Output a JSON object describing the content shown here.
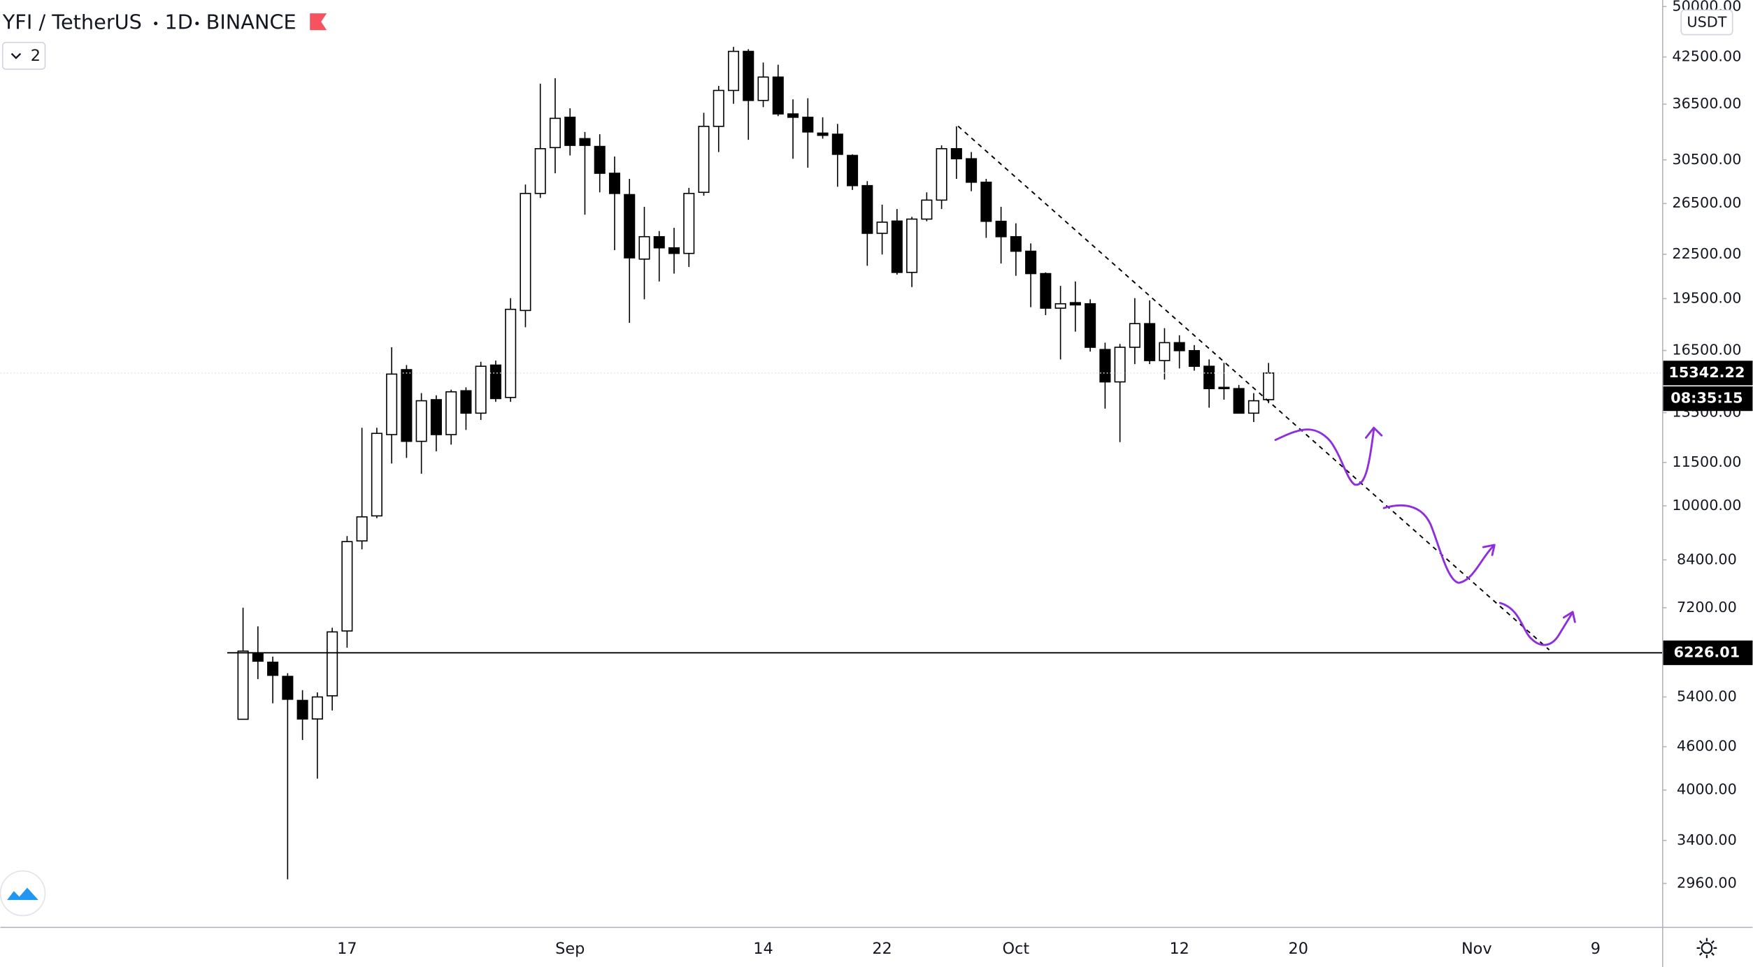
{
  "header": {
    "symbol": "YFI / TetherUS",
    "interval": "1D",
    "exchange": "BINANCE",
    "indicator_count": 2
  },
  "chart_data": {
    "type": "candlestick",
    "currency": "USDT",
    "log_scale": true,
    "grid": false,
    "up_color": "#ffffff",
    "down_color": "#000000",
    "wick_color": "#000000",
    "countdown": "08:35:15",
    "hline": 6226.01,
    "categories": [
      null,
      null,
      null,
      null,
      null,
      null,
      null,
      null,
      null,
      null,
      null,
      null,
      null,
      null,
      null,
      null,
      null,
      null,
      null,
      null,
      null,
      null,
      "17",
      null,
      null,
      null,
      null,
      null,
      null,
      null,
      null,
      null,
      null,
      null,
      null,
      null,
      null,
      "Sep",
      null,
      null,
      null,
      null,
      null,
      null,
      null,
      null,
      null,
      null,
      null,
      null,
      "14",
      null,
      null,
      null,
      null,
      null,
      null,
      null,
      "22",
      null,
      null,
      null,
      null,
      null,
      null,
      null,
      null,
      "Oct",
      null,
      null,
      null,
      null,
      null,
      null,
      null,
      null,
      null,
      null,
      "12",
      null,
      null,
      null,
      null,
      null,
      null,
      null,
      "20",
      null,
      null,
      null,
      null,
      null,
      null,
      null,
      null,
      null,
      null,
      null,
      "Nov",
      null,
      null,
      null,
      null,
      null,
      null,
      null,
      "9",
      null,
      null,
      null,
      null
    ],
    "open": [
      null,
      null,
      null,
      null,
      null,
      null,
      null,
      null,
      null,
      null,
      null,
      null,
      null,
      null,
      null,
      5025,
      6220,
      6040,
      5770,
      5340,
      5030,
      5420,
      6680,
      8930,
      9680,
      12580,
      15510,
      12310,
      14080,
      12580,
      14490,
      13480,
      15740,
      14180,
      18770,
      27370,
      31730,
      34990,
      32660,
      31850,
      29210,
      27270,
      22150,
      23810,
      22970,
      22560,
      27470,
      33980,
      38150,
      43270,
      36940,
      39830,
      35370,
      34990,
      33250,
      33130,
      30940,
      28070,
      24070,
      25040,
      21220,
      25200,
      26790,
      31620,
      30610,
      28380,
      25020,
      23810,
      22720,
      21140,
      18910,
      19250,
      19180,
      16550,
      14910,
      16670,
      17990,
      15970,
      16920,
      16490,
      15680,
      14650,
      14590,
      13480,
      14080,
      null,
      null,
      null,
      null,
      null,
      null,
      null,
      null,
      null,
      null,
      null,
      null,
      null,
      null,
      null,
      null,
      null,
      null,
      null,
      null,
      null,
      null,
      null,
      null,
      null,
      null
    ],
    "high": [
      null,
      null,
      null,
      null,
      null,
      null,
      null,
      null,
      null,
      null,
      null,
      null,
      null,
      null,
      null,
      7200,
      6780,
      6150,
      5830,
      5520,
      5480,
      6750,
      9070,
      12860,
      12860,
      16670,
      15740,
      14380,
      14280,
      14540,
      14650,
      15910,
      15970,
      19530,
      28170,
      38990,
      39690,
      36020,
      33370,
      33130,
      30830,
      28690,
      26220,
      24240,
      24500,
      27870,
      35500,
      38710,
      43900,
      43580,
      41740,
      41450,
      37070,
      37200,
      34990,
      34250,
      31050,
      28480,
      26400,
      26030,
      25380,
      27470,
      31960,
      33980,
      31280,
      28690,
      26220,
      24860,
      23300,
      21220,
      20320,
      20610,
      19460,
      16920,
      16850,
      19530,
      19390,
      17730,
      17330,
      16790,
      16030,
      15850,
      14760,
      14380,
      15850,
      null,
      null,
      null,
      null,
      null,
      null,
      null,
      null,
      null,
      null,
      null,
      null,
      null,
      null,
      null,
      null,
      null,
      null,
      null,
      null,
      null,
      null,
      null,
      null,
      null,
      null
    ],
    "low": [
      null,
      null,
      null,
      null,
      null,
      null,
      null,
      null,
      null,
      null,
      null,
      null,
      null,
      null,
      null,
      5020,
      5720,
      5290,
      3000,
      4700,
      4150,
      5170,
      6330,
      8690,
      9610,
      11460,
      11670,
      11090,
      11920,
      12180,
      12770,
      13190,
      13980,
      13980,
      17780,
      26980,
      29210,
      30940,
      25560,
      27470,
      22800,
      18040,
      19460,
      20610,
      21140,
      21600,
      27170,
      31280,
      36540,
      32540,
      36150,
      35120,
      30610,
      29740,
      32660,
      27970,
      27680,
      21680,
      22480,
      21070,
      20240,
      25020,
      26030,
      28690,
      27570,
      23720,
      21840,
      20990,
      18970,
      18490,
      16030,
      17530,
      16440,
      13680,
      12280,
      15790,
      15790,
      15020,
      15570,
      15460,
      13720,
      14080,
      13470,
      13100,
      13920,
      null,
      null,
      null,
      null,
      null,
      null,
      null,
      null,
      null,
      null,
      null,
      null,
      null,
      null,
      null,
      null,
      null,
      null,
      null,
      null,
      null,
      null,
      null,
      null,
      null,
      null
    ],
    "close": [
      null,
      null,
      null,
      null,
      null,
      null,
      null,
      null,
      null,
      null,
      null,
      null,
      null,
      null,
      null,
      6260,
      6060,
      5790,
      5360,
      5030,
      5400,
      6660,
      8910,
      9650,
      12630,
      15290,
      12310,
      14030,
      12580,
      14440,
      13480,
      15680,
      14130,
      18840,
      27370,
      31620,
      34870,
      31960,
      31960,
      29210,
      27370,
      22240,
      23810,
      22970,
      22560,
      27370,
      33980,
      38150,
      43270,
      36940,
      39830,
      35370,
      34990,
      33370,
      33010,
      31050,
      28070,
      24070,
      24950,
      21220,
      25200,
      26790,
      31620,
      30610,
      28380,
      25020,
      23810,
      22720,
      21140,
      18910,
      19180,
      19110,
      16670,
      14910,
      16670,
      17990,
      15970,
      16920,
      16490,
      15680,
      14590,
      14590,
      13480,
      14030,
      15342.22,
      null,
      null,
      null,
      null,
      null,
      null,
      null,
      null,
      null,
      null,
      null,
      null,
      null,
      null,
      null,
      null,
      null,
      null,
      null,
      null,
      null,
      null,
      null,
      null,
      null,
      null
    ],
    "ylim": [
      2574,
      51064
    ],
    "yticks": [
      {
        "value": 50000,
        "label": "50000.00"
      },
      {
        "value": 42500,
        "label": "42500.00"
      },
      {
        "value": 36500,
        "label": "36500.00"
      },
      {
        "value": 30500,
        "label": "30500.00"
      },
      {
        "value": 26500,
        "label": "26500.00"
      },
      {
        "value": 22500,
        "label": "22500.00"
      },
      {
        "value": 19500,
        "label": "19500.00"
      },
      {
        "value": 16500,
        "label": "16500.00"
      },
      {
        "value": 13500,
        "label": "13500.00"
      },
      {
        "value": 11500,
        "label": "11500.00"
      },
      {
        "value": 10000,
        "label": "10000.00"
      },
      {
        "value": 8400,
        "label": "8400.00"
      },
      {
        "value": 7200,
        "label": "7200.00"
      },
      {
        "value": 5400,
        "label": "5400.00"
      },
      {
        "value": 4600,
        "label": "4600.00"
      },
      {
        "value": 4000,
        "label": "4000.00"
      },
      {
        "value": 3400,
        "label": "3400.00"
      },
      {
        "value": 2960,
        "label": "2960.00"
      }
    ]
  }
}
